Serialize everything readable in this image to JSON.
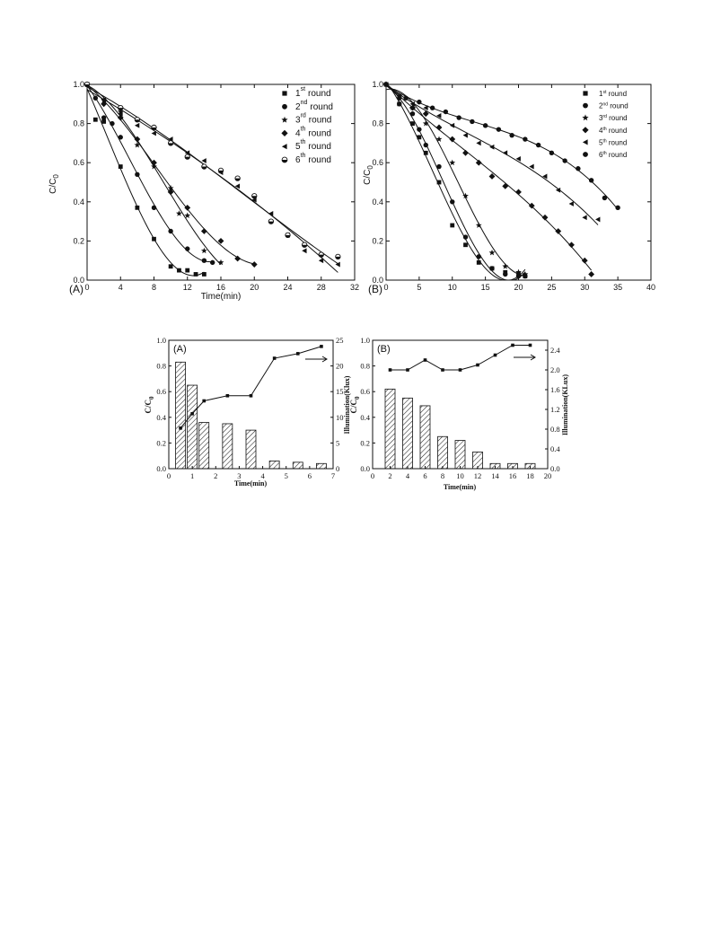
{
  "chart_data": [
    {
      "id": "top-A",
      "type": "scatter",
      "panel_label": "(A)",
      "xlabel": "Time(min)",
      "ylabel": "C/C",
      "ylabel_sub": "0",
      "xlim": [
        0,
        32
      ],
      "ylim": [
        0,
        1.0
      ],
      "xticks": [
        0,
        4,
        8,
        12,
        16,
        20,
        24,
        28,
        32
      ],
      "yticks": [
        0.0,
        0.2,
        0.4,
        0.6,
        0.8,
        1.0
      ],
      "ytick_labels": [
        "0.0",
        "0.2",
        "0.4",
        "0.6",
        "0.8",
        "1.0"
      ],
      "legend_position": "top-right",
      "series": [
        {
          "name": "1st round",
          "num": "1",
          "sup": "st",
          "word": "round",
          "marker": "square",
          "x": [
            0,
            1,
            2,
            4,
            6,
            8,
            10,
            11,
            12,
            13,
            14
          ],
          "y": [
            1.0,
            0.82,
            0.81,
            0.58,
            0.37,
            0.21,
            0.07,
            0.05,
            0.05,
            0.03,
            0.03
          ]
        },
        {
          "name": "2nd round",
          "num": "2",
          "sup": "nd",
          "word": "round",
          "marker": "circle",
          "x": [
            0,
            1,
            2,
            3,
            4,
            6,
            8,
            10,
            12,
            14,
            15
          ],
          "y": [
            1.0,
            0.93,
            0.83,
            0.8,
            0.73,
            0.54,
            0.37,
            0.25,
            0.16,
            0.1,
            0.09
          ]
        },
        {
          "name": "3rd round",
          "num": "3",
          "sup": "rd",
          "word": "round",
          "marker": "star",
          "x": [
            0,
            2,
            4,
            6,
            8,
            10,
            11,
            12,
            14,
            16
          ],
          "y": [
            1.0,
            0.92,
            0.86,
            0.69,
            0.58,
            0.47,
            0.34,
            0.33,
            0.15,
            0.09
          ]
        },
        {
          "name": "4th round",
          "num": "4",
          "sup": "th",
          "word": "round",
          "marker": "diamond",
          "x": [
            0,
            2,
            4,
            6,
            8,
            10,
            12,
            14,
            16,
            18,
            20
          ],
          "y": [
            1.0,
            0.9,
            0.83,
            0.72,
            0.6,
            0.45,
            0.37,
            0.25,
            0.2,
            0.11,
            0.08
          ]
        },
        {
          "name": "5th round",
          "num": "5",
          "sup": "th",
          "word": "round",
          "marker": "triangle-left",
          "x": [
            0,
            2,
            4,
            6,
            8,
            10,
            12,
            14,
            16,
            18,
            20,
            22,
            24,
            26,
            28,
            30
          ],
          "y": [
            1.0,
            0.92,
            0.85,
            0.79,
            0.75,
            0.72,
            0.65,
            0.61,
            0.55,
            0.48,
            0.41,
            0.34,
            0.23,
            0.15,
            0.1,
            0.08
          ]
        },
        {
          "name": "6th round",
          "num": "6",
          "sup": "th",
          "word": "round",
          "marker": "half-circle",
          "x": [
            0,
            4,
            6,
            8,
            10,
            12,
            14,
            16,
            18,
            20,
            22,
            24,
            26,
            28,
            30
          ],
          "y": [
            1.0,
            0.88,
            0.82,
            0.78,
            0.7,
            0.63,
            0.58,
            0.56,
            0.52,
            0.43,
            0.3,
            0.23,
            0.18,
            0.13,
            0.12
          ]
        }
      ]
    },
    {
      "id": "top-B",
      "type": "scatter",
      "panel_label": "(B)",
      "xlabel": "",
      "ylabel": "C/C",
      "ylabel_sub": "0",
      "xlim": [
        0,
        40
      ],
      "ylim": [
        0,
        1.0
      ],
      "xticks": [
        0,
        5,
        10,
        15,
        20,
        25,
        30,
        35,
        40
      ],
      "yticks": [
        0.0,
        0.2,
        0.4,
        0.6,
        0.8,
        1.0
      ],
      "ytick_labels": [
        "0.0",
        "0.2",
        "0.4",
        "0.6",
        "0.8",
        "1.0"
      ],
      "legend_position": "top-right",
      "series": [
        {
          "name": "1st round",
          "num": "1",
          "sup": "st",
          "word": " round",
          "marker": "square",
          "x": [
            0,
            2,
            4,
            5,
            6,
            8,
            10,
            12,
            14,
            16,
            18,
            20,
            21
          ],
          "y": [
            1.0,
            0.9,
            0.8,
            0.73,
            0.65,
            0.5,
            0.28,
            0.18,
            0.09,
            0.06,
            0.04,
            0.03,
            0.02
          ]
        },
        {
          "name": "2nd round",
          "num": "2",
          "sup": "nd",
          "word": " round",
          "marker": "circle",
          "x": [
            0,
            2,
            4,
            5,
            6,
            8,
            10,
            12,
            14,
            16,
            18,
            20,
            21
          ],
          "y": [
            1.0,
            0.9,
            0.85,
            0.77,
            0.69,
            0.58,
            0.4,
            0.22,
            0.12,
            0.06,
            0.03,
            0.02,
            0.02
          ]
        },
        {
          "name": "3rd round",
          "num": "3",
          "sup": "rd",
          "word": " round",
          "marker": "star",
          "x": [
            0,
            2,
            4,
            6,
            8,
            10,
            12,
            14,
            16,
            18,
            20,
            21
          ],
          "y": [
            1.0,
            0.94,
            0.88,
            0.8,
            0.72,
            0.6,
            0.43,
            0.28,
            0.14,
            0.07,
            0.04,
            0.03
          ]
        },
        {
          "name": "4th round",
          "num": "4",
          "sup": "th",
          "word": " round",
          "marker": "diamond",
          "x": [
            0,
            2,
            4,
            6,
            8,
            10,
            12,
            14,
            16,
            18,
            20,
            22,
            24,
            26,
            28,
            30,
            31
          ],
          "y": [
            1.0,
            0.93,
            0.88,
            0.85,
            0.78,
            0.72,
            0.65,
            0.6,
            0.53,
            0.48,
            0.45,
            0.38,
            0.32,
            0.25,
            0.18,
            0.1,
            0.03
          ]
        },
        {
          "name": "5th round",
          "num": "5",
          "sup": "th",
          "word": " round",
          "marker": "triangle-left",
          "x": [
            0,
            2,
            4,
            6,
            8,
            10,
            12,
            14,
            16,
            18,
            20,
            22,
            24,
            26,
            28,
            30,
            32
          ],
          "y": [
            1.0,
            0.94,
            0.9,
            0.88,
            0.84,
            0.79,
            0.74,
            0.7,
            0.68,
            0.65,
            0.62,
            0.58,
            0.53,
            0.46,
            0.39,
            0.32,
            0.31
          ]
        },
        {
          "name": "6th round",
          "num": "6",
          "sup": "th",
          "word": " round",
          "marker": "circle",
          "x": [
            0,
            3,
            5,
            7,
            9,
            11,
            13,
            15,
            17,
            19,
            21,
            23,
            25,
            27,
            29,
            31,
            33,
            35
          ],
          "y": [
            1.0,
            0.93,
            0.91,
            0.88,
            0.86,
            0.83,
            0.81,
            0.79,
            0.77,
            0.74,
            0.72,
            0.69,
            0.65,
            0.61,
            0.57,
            0.51,
            0.42,
            0.37
          ]
        }
      ]
    },
    {
      "id": "bottom-A",
      "type": "bar",
      "panel_label": "(A)",
      "xlabel": "Time(min)",
      "ylabel": "C/C",
      "ylabel_sub": "0",
      "y2label": "Illumination(Klux)",
      "xlim": [
        0,
        7
      ],
      "ylim": [
        0,
        1.0
      ],
      "y2lim": [
        0,
        25
      ],
      "xticks": [
        0,
        1,
        2,
        3,
        4,
        5,
        6,
        7
      ],
      "yticks": [
        0.0,
        0.2,
        0.4,
        0.6,
        0.8,
        1.0
      ],
      "ytick_labels": [
        "0.0",
        "0.2",
        "0.4",
        "0.6",
        "0.8",
        "1.0"
      ],
      "y2ticks": [
        0,
        5,
        10,
        15,
        20,
        25
      ],
      "bars": {
        "x": [
          0.5,
          1.0,
          1.5,
          2.5,
          3.5,
          4.5,
          5.5,
          6.5
        ],
        "values": [
          0.83,
          0.65,
          0.36,
          0.35,
          0.3,
          0.06,
          0.05,
          0.04
        ]
      },
      "illumination": {
        "x": [
          0.5,
          1.0,
          1.5,
          2.5,
          3.5,
          4.5,
          5.5,
          6.5
        ],
        "values": [
          7.9,
          10.7,
          13.2,
          14.2,
          14.2,
          21.5,
          22.4,
          23.8
        ]
      },
      "arrow_direction": "right"
    },
    {
      "id": "bottom-B",
      "type": "bar",
      "panel_label": "(B)",
      "xlabel": "Time(min)",
      "ylabel": "C/C",
      "ylabel_sub": "0",
      "y2label": "Illumination(KLux)",
      "xlim": [
        0,
        20
      ],
      "ylim": [
        0,
        1.0
      ],
      "y2lim": [
        0,
        2.6
      ],
      "xticks": [
        0,
        2,
        4,
        6,
        8,
        10,
        12,
        14,
        16,
        18,
        20
      ],
      "yticks": [
        0.0,
        0.2,
        0.4,
        0.6,
        0.8,
        1.0
      ],
      "ytick_labels": [
        "0.0",
        "0.2",
        "0.4",
        "0.6",
        "0.8",
        "1.0"
      ],
      "y2ticks": [
        0,
        0.4,
        0.8,
        1.2,
        1.6,
        2.0,
        2.4
      ],
      "y2tick_labels": [
        "0.0",
        "0.4",
        "0.8",
        "1.2",
        "1.6",
        "2.0",
        "2.4"
      ],
      "bars": {
        "x": [
          2,
          4,
          6,
          8,
          10,
          12,
          14,
          16,
          18
        ],
        "values": [
          0.62,
          0.55,
          0.49,
          0.25,
          0.22,
          0.13,
          0.04,
          0.04,
          0.04
        ]
      },
      "illumination": {
        "x": [
          2,
          4,
          6,
          8,
          10,
          12,
          14,
          16,
          18
        ],
        "values": [
          2.0,
          2.0,
          2.2,
          2.0,
          2.0,
          2.1,
          2.3,
          2.5,
          2.5
        ]
      },
      "arrow_direction": "right"
    }
  ]
}
